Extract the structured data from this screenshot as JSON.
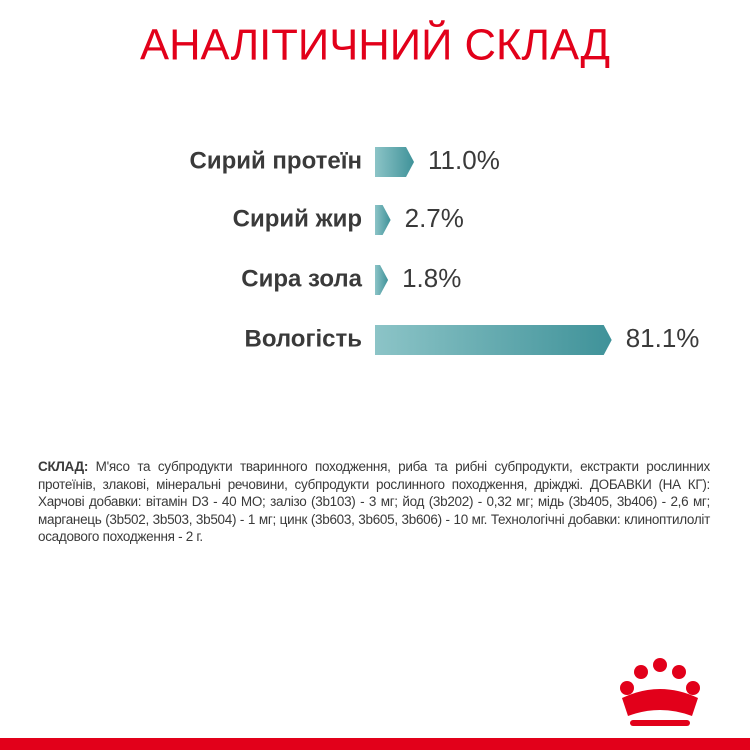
{
  "chart_data": {
    "type": "bar",
    "orientation": "horizontal",
    "title": "АНАЛІТИЧНИЙ СКЛАД",
    "categories": [
      "Сирий протеїн",
      "Сирий жир",
      "Сира зола",
      "Вологість"
    ],
    "values": [
      11.0,
      2.7,
      1.8,
      81.1
    ],
    "value_labels": [
      "11.0%",
      "2.7%",
      "1.8%",
      "81.1%"
    ],
    "color": "#3f9299"
  },
  "composition": {
    "label": "СКЛАД:",
    "text": "М'ясо та субпродукти тваринного походження, риба та рибні субпродукти, екстракти рослинних протеїнів, злакові, мінеральні речовини, субпродукти рослинного походження, дріжджі. ДОБАВКИ (НА КГ): Харчові добавки: вітамін D3 - 40 МО; залізо (3b103) - 3 мг; йод (3b202) - 0,32 мг; мідь (3b405, 3b406) - 2,6 мг; марганець (3b502, 3b503, 3b504) - 1 мг; цинк (3b603, 3b605, 3b606) - 10 мг. Технологічні добавки: клиноптилоліт осадового походження - 2 г."
  }
}
